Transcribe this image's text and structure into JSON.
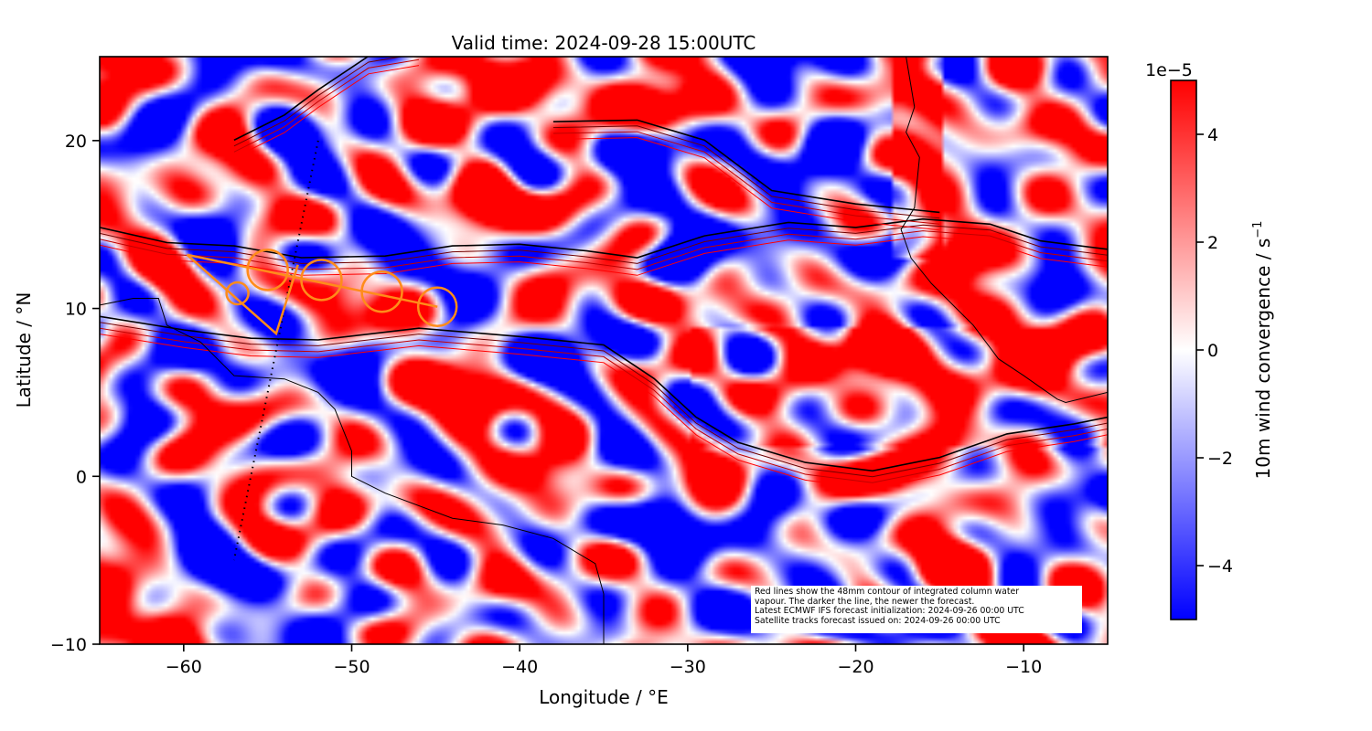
{
  "chart_data": {
    "type": "heatmap",
    "title": "Valid time: 2024-09-28 15:00UTC",
    "xlabel": "Longitude / °E",
    "ylabel": "Latitude / °N",
    "xlim": [
      -65,
      -5
    ],
    "ylim": [
      -10,
      25
    ],
    "xticks": [
      -60,
      -50,
      -40,
      -30,
      -20,
      -10
    ],
    "yticks": [
      -10,
      0,
      10,
      20
    ],
    "xtick_labels": [
      "−60",
      "−50",
      "−40",
      "−30",
      "−20",
      "−10"
    ],
    "ytick_labels": [
      "−10",
      "0",
      "10",
      "20"
    ],
    "colorbar": {
      "label": "10m wind convergence / s",
      "label_superscript": "−1",
      "scale_label": "1e−5",
      "range": [
        -5,
        5
      ],
      "ticks": [
        -4,
        -2,
        0,
        2,
        4
      ],
      "tick_labels": [
        "−4",
        "−2",
        "0",
        "2",
        "4"
      ],
      "colormap": "bwr",
      "low_color": "#0000ff",
      "mid_color": "#ffffff",
      "high_color": "#ff0000"
    },
    "annotation": [
      "Red lines show the 48mm contour of integrated column water",
      "vapour. The darker the line, the newer the forecast.",
      "Latest ECMWF IFS forecast initialization: 2024-09-26 00:00 UTC",
      "Satellite tracks forecast issued on: 2024-09-26 00:00 UTC"
    ],
    "satellite_track": {
      "color": "#ff8c1a",
      "line": [
        [
          -59.8,
          13.2
        ],
        [
          -44.9,
          10.1
        ]
      ],
      "branch": [
        [
          -59.8,
          13.2
        ],
        [
          -54.5,
          8.5
        ],
        [
          -53.2,
          12.6
        ]
      ],
      "circles": [
        [
          -55.0,
          12.3
        ],
        [
          -56.8,
          10.9
        ],
        [
          -51.8,
          11.7
        ],
        [
          -48.2,
          11.0
        ],
        [
          -44.9,
          10.1
        ]
      ]
    },
    "dotted_track": [
      [
        -52,
        20
      ],
      [
        -57,
        -5
      ]
    ],
    "coastlines": [
      [
        [
          -65,
          10.2
        ],
        [
          -63,
          10.6
        ],
        [
          -61.5,
          10.6
        ],
        [
          -61,
          9
        ],
        [
          -59,
          8
        ],
        [
          -57,
          6
        ],
        [
          -54,
          5.8
        ],
        [
          -52,
          5
        ],
        [
          -51,
          4
        ],
        [
          -50,
          1.5
        ],
        [
          -50,
          0
        ],
        [
          -48,
          -1
        ],
        [
          -44,
          -2.5
        ],
        [
          -41,
          -2.9
        ],
        [
          -38,
          -3.7
        ],
        [
          -35.5,
          -5.2
        ],
        [
          -35,
          -7
        ],
        [
          -35,
          -10
        ]
      ],
      [
        [
          -17,
          25
        ],
        [
          -16.5,
          22
        ],
        [
          -17,
          20.5
        ],
        [
          -16.2,
          19
        ],
        [
          -16.5,
          16
        ],
        [
          -17.3,
          14.7
        ],
        [
          -16.7,
          13
        ],
        [
          -15.5,
          11.5
        ],
        [
          -14,
          10
        ],
        [
          -13,
          9
        ],
        [
          -11.5,
          7
        ],
        [
          -10,
          6
        ],
        [
          -8,
          4.6
        ],
        [
          -7.5,
          4.4
        ],
        [
          -5,
          5
        ]
      ]
    ],
    "moisture_contours": [
      [
        [
          -65,
          14.3
        ],
        [
          -61,
          13.4
        ],
        [
          -57,
          13.2
        ],
        [
          -53,
          12.5
        ],
        [
          -48,
          12.6
        ],
        [
          -44,
          13.2
        ],
        [
          -40,
          13.3
        ],
        [
          -36,
          12.9
        ],
        [
          -33,
          12.5
        ],
        [
          -29,
          13.8
        ],
        [
          -24,
          14.6
        ],
        [
          -20,
          14.3
        ],
        [
          -16,
          14.8
        ],
        [
          -12,
          14.5
        ],
        [
          -9,
          13.5
        ],
        [
          -5,
          13
        ]
      ],
      [
        [
          -65,
          9
        ],
        [
          -60,
          8.2
        ],
        [
          -56,
          7.7
        ],
        [
          -52,
          7.6
        ],
        [
          -46,
          8.3
        ],
        [
          -40,
          7.8
        ],
        [
          -35,
          7.3
        ],
        [
          -32,
          5.3
        ],
        [
          -29.5,
          3
        ],
        [
          -27,
          1.5
        ],
        [
          -23,
          0.3
        ],
        [
          -19,
          -0.2
        ],
        [
          -15,
          0.6
        ],
        [
          -11,
          2
        ],
        [
          -7,
          2.6
        ],
        [
          -5,
          3
        ]
      ],
      [
        [
          -57,
          19.5
        ],
        [
          -54,
          21
        ],
        [
          -52,
          22.5
        ],
        [
          -49,
          24.5
        ],
        [
          -46,
          25
        ]
      ],
      [
        [
          -38,
          20.6
        ],
        [
          -33,
          20.7
        ],
        [
          -29,
          19.5
        ],
        [
          -25,
          16.5
        ],
        [
          -20,
          15.7
        ],
        [
          -15,
          15.2
        ]
      ]
    ]
  }
}
